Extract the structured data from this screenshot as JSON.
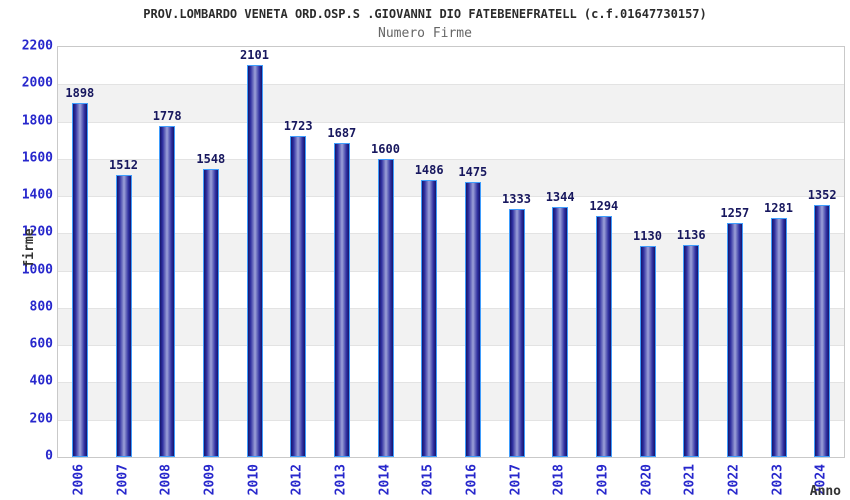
{
  "chart_data": {
    "type": "bar",
    "title": "PROV.LOMBARDO VENETA ORD.OSP.S .GIOVANNI DIO FATEBENEFRATELL (c.f.01647730157)",
    "subtitle": "Numero Firme",
    "xlabel": "Anno",
    "ylabel": "firme",
    "categories": [
      "2006",
      "2007",
      "2008",
      "2009",
      "2010",
      "2012",
      "2013",
      "2014",
      "2015",
      "2016",
      "2017",
      "2018",
      "2019",
      "2020",
      "2021",
      "2022",
      "2023",
      "2024"
    ],
    "values": [
      1898,
      1512,
      1778,
      1548,
      2101,
      1723,
      1687,
      1600,
      1486,
      1475,
      1333,
      1344,
      1294,
      1130,
      1136,
      1257,
      1281,
      1352
    ],
    "ylim": [
      0,
      2200
    ],
    "ytick_step": 200,
    "yticks": [
      0,
      200,
      400,
      600,
      800,
      1000,
      1200,
      1400,
      1600,
      1800,
      2000,
      2200
    ],
    "gray_bands": [
      [
        200,
        400
      ],
      [
        600,
        800
      ],
      [
        1000,
        1200
      ],
      [
        1400,
        1600
      ],
      [
        1800,
        2000
      ]
    ],
    "grid": "horizontal bands, light gray alternating every 200",
    "legend_position": "none",
    "colors": {
      "bar_edge": "#15156b",
      "bar_mid": "#2e2ea0",
      "bar_center": "#9ca1d8",
      "bar_border": "#3f9dfc",
      "tick_label": "#2727cc",
      "value_label": "#17175e",
      "title": "#2b2b2b",
      "subtitle": "#666666",
      "axis_title": "#333333",
      "band_gray": "#f2f2f2",
      "plot_border": "#c9c9c9",
      "gridline": "#e3e3e3",
      "background": "#ffffff"
    }
  }
}
